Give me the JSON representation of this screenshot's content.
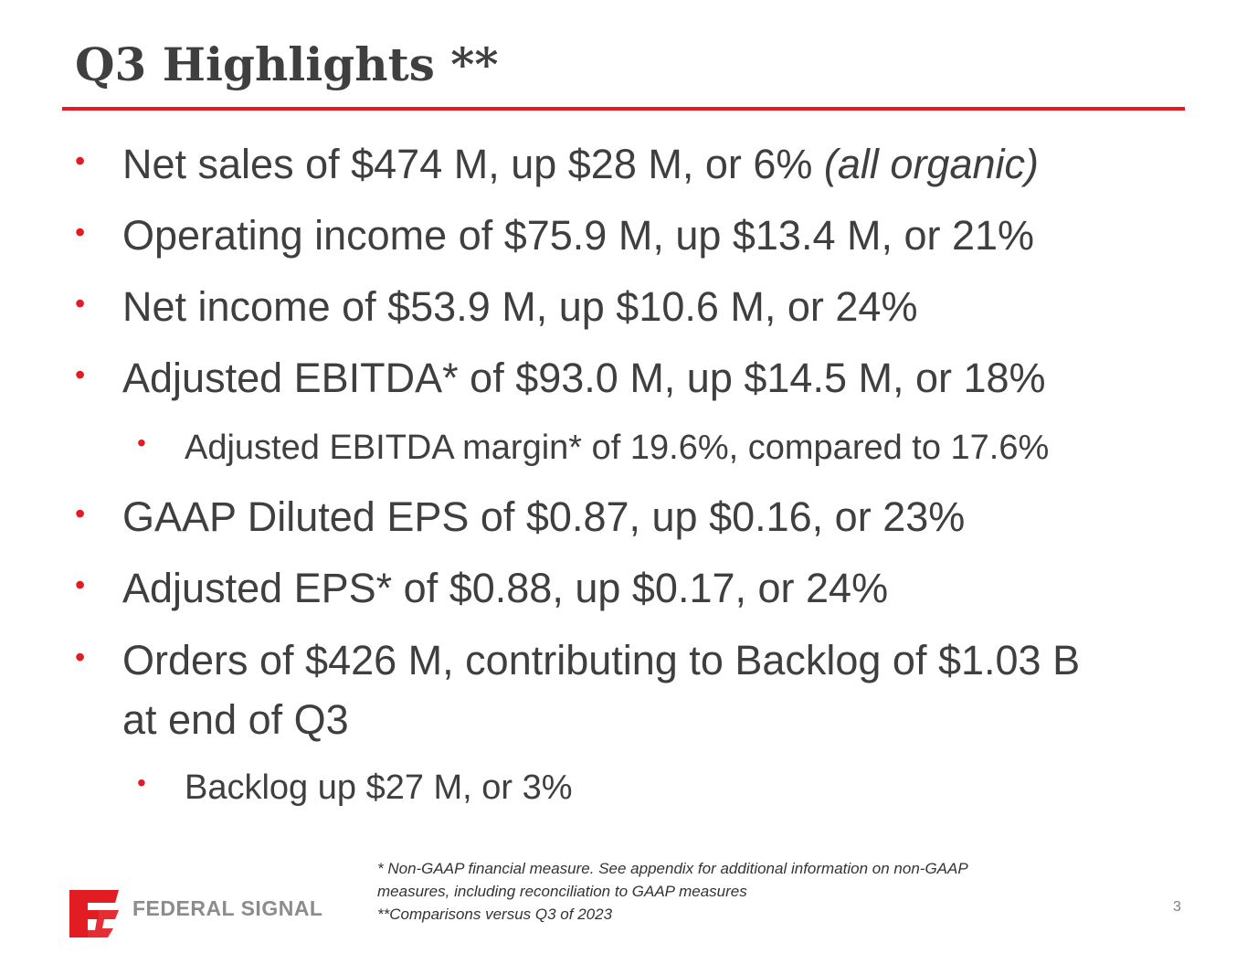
{
  "slide": {
    "title": "Q3 Highlights **",
    "page_number": "3"
  },
  "bullets": {
    "b1_main": "Net sales of $474 M, up $28 M, or 6% ",
    "b1_italic": "(all organic)",
    "b2": "Operating income of $75.9 M, up $13.4 M, or 21%",
    "b3": "Net income of $53.9 M, up $10.6 M, or 24%",
    "b4": "Adjusted EBITDA* of $93.0 M, up $14.5 M, or 18%",
    "b4_sub": "Adjusted EBITDA margin* of 19.6%, compared to 17.6%",
    "b5": "GAAP Diluted EPS of $0.87, up $0.16, or 23%",
    "b6": "Adjusted EPS* of $0.88, up $0.17, or 24%",
    "b7_line1": "Orders of $426 M, contributing to Backlog of $1.03 B",
    "b7_line2": "at end of Q3",
    "b7_sub": "Backlog up $27 M, or 3%",
    "bullet_glyph": "•"
  },
  "footnote": {
    "line1": "* Non-GAAP financial measure. See appendix for additional information on non-GAAP",
    "line2": "measures, including reconciliation to GAAP measures",
    "line3": "**Comparisons versus Q3 of 2023"
  },
  "logo": {
    "text": "FEDERAL SIGNAL"
  },
  "colors": {
    "accent_red": "#e31b23",
    "text_gray": "#3f3f3f",
    "logo_gray": "#8c8c8c"
  }
}
